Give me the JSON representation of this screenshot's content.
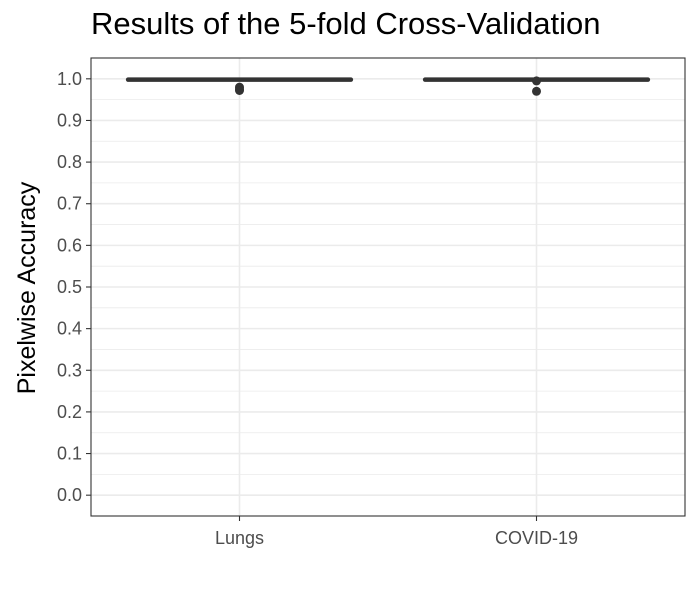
{
  "chart_data": {
    "type": "boxplot",
    "title": "Results of the 5-fold Cross-Validation",
    "xlabel": "",
    "ylabel": "Pixelwise Accuracy",
    "categories": [
      "Lungs",
      "COVID-19"
    ],
    "ylim": [
      -0.05,
      1.05
    ],
    "yticks": [
      "0.0",
      "0.1",
      "0.2",
      "0.3",
      "0.4",
      "0.5",
      "0.6",
      "0.7",
      "0.8",
      "0.9",
      "1.0"
    ],
    "grid": true,
    "series": [
      {
        "category": "Lungs",
        "box_low": 0.997,
        "median": 0.998,
        "box_high": 0.999,
        "outliers": [
          0.98,
          0.975,
          0.972
        ]
      },
      {
        "category": "COVID-19",
        "box_low": 0.997,
        "median": 0.998,
        "box_high": 0.999,
        "outliers": [
          0.995,
          0.97
        ]
      }
    ],
    "colors": {
      "box": "#333333",
      "panel_border": "#333333",
      "grid": "#ebebeb",
      "tick_text": "#4d4d4d"
    }
  }
}
